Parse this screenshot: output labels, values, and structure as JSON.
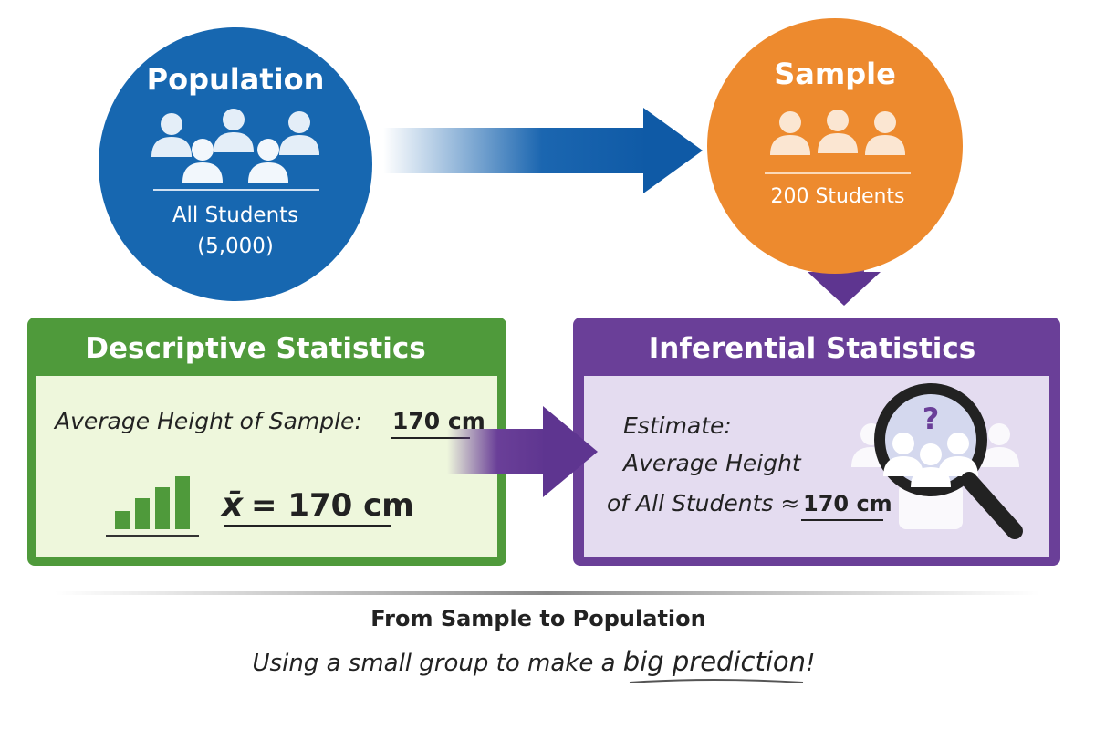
{
  "population": {
    "title": "Population",
    "label": "All Students",
    "count": "(5,000)"
  },
  "sample": {
    "title": "Sample",
    "label": "200 Students"
  },
  "descriptive": {
    "title": "Descriptive Statistics",
    "line_label": "Average Height of Sample:",
    "line_value": "170 cm",
    "symbol": "x̄",
    "formula": "= 170 cm"
  },
  "inferential": {
    "title": "Inferential Statistics",
    "lines": [
      "Estimate:",
      "Average Height",
      "of All Students ≈"
    ],
    "value": "170 cm",
    "icon_text": "?"
  },
  "footer": {
    "title": "From Sample to Population",
    "subtitle_start": "Using a small group to make a ",
    "subtitle_emphasis": "big prediction",
    "subtitle_end": "!"
  }
}
